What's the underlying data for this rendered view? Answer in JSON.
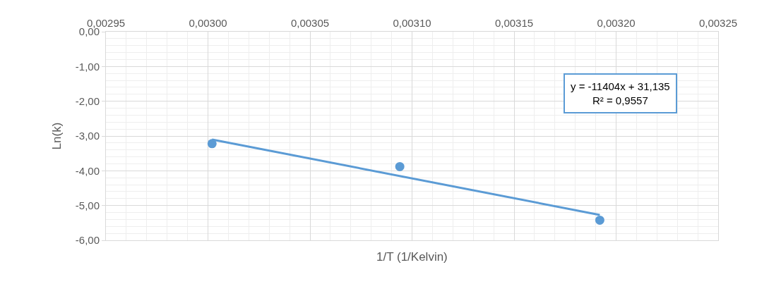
{
  "chart_data": {
    "type": "scatter",
    "xlabel": "1/T (1/Kelvin)",
    "ylabel": "Ln(k)",
    "series": [
      {
        "color": "#5b9bd5",
        "x": [
          0.003002,
          0.003094,
          0.003192
        ],
        "values": [
          -3.22,
          -3.88,
          -5.42
        ],
        "marker": "circle"
      },
      {
        "type": "line",
        "color": "#5b9bd5",
        "x": [
          0.003002,
          0.003192
        ],
        "values": [
          -3.1,
          -5.27
        ],
        "line_style": "solid"
      }
    ],
    "annotations": [
      "y = -11404x + 31,135",
      "R² = 0,9557"
    ],
    "xlim": [
      0.00295,
      0.00325
    ],
    "xticks": [
      {
        "value": 0.00295,
        "label": "0,00295"
      },
      {
        "value": 0.003,
        "label": "0,00300"
      },
      {
        "value": 0.00305,
        "label": "0,00305"
      },
      {
        "value": 0.0031,
        "label": "0,00310"
      },
      {
        "value": 0.00315,
        "label": "0,00315"
      },
      {
        "value": 0.0032,
        "label": "0,00320"
      },
      {
        "value": 0.00325,
        "label": "0,00325"
      }
    ],
    "ylim": [
      -6,
      0
    ],
    "yticks": [
      {
        "value": 0,
        "label": "0,00"
      },
      {
        "value": -1,
        "label": "-1,00"
      },
      {
        "value": -2,
        "label": "-2,00"
      },
      {
        "value": -3,
        "label": "-3,00"
      },
      {
        "value": -4,
        "label": "-4,00"
      },
      {
        "value": -5,
        "label": "-5,00"
      },
      {
        "value": -6,
        "label": "-6,00"
      }
    ],
    "grid": true
  }
}
